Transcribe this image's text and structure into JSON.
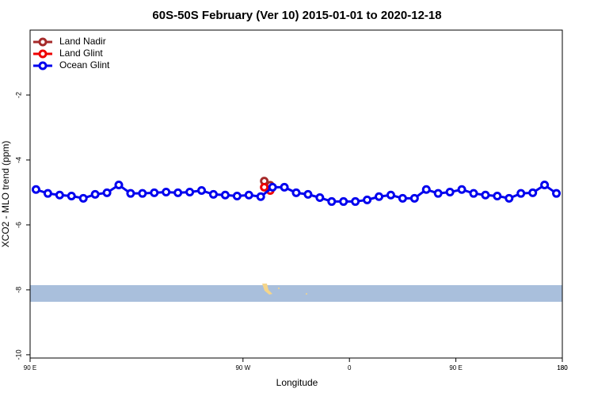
{
  "chart_data": {
    "type": "line",
    "title": "60S-50S February (Ver 10)   2015-01-01 to 2020-12-18",
    "xlabel": "Longitude",
    "ylabel": "XCO2 - MLO trend (ppm)",
    "xlim": [
      -270,
      180
    ],
    "ylim": [
      -10.1,
      0
    ],
    "xticks": [
      {
        "value": -270,
        "label": "90 E"
      },
      180,
      {
        "value": -90,
        "label": "90 W"
      },
      0,
      {
        "value": 90,
        "label": "90 E"
      },
      180
    ],
    "yticks": [
      -2,
      -4,
      -6,
      -8,
      -10
    ],
    "legend": "top-left",
    "series": [
      {
        "name": "Land Nadir",
        "color": "#a52a2a",
        "x": [
          -72,
          -67
        ],
        "values": [
          -4.65,
          -4.78
        ]
      },
      {
        "name": "Land Glint",
        "color": "#ee0000",
        "x": [
          -72,
          -67
        ],
        "values": [
          -4.84,
          -4.94
        ]
      },
      {
        "name": "Ocean Glint",
        "color": "#0000ee",
        "x": [
          -265,
          -255,
          -245,
          -235,
          -225,
          -215,
          -205,
          -195,
          -185,
          -175,
          -165,
          -155,
          -145,
          -135,
          -125,
          -115,
          -105,
          -95,
          -85,
          -75,
          -65,
          -55,
          -45,
          -35,
          -25,
          -15,
          -5,
          5,
          15,
          25,
          35,
          45,
          55,
          65,
          75,
          85,
          95,
          105,
          115,
          125,
          135,
          145,
          155,
          165,
          175
        ],
        "values": [
          -4.91,
          -5.03,
          -5.08,
          -5.11,
          -5.18,
          -5.06,
          -5.01,
          -4.77,
          -5.03,
          -5.03,
          -5.01,
          -4.99,
          -5.01,
          -4.99,
          -4.94,
          -5.06,
          -5.08,
          -5.11,
          -5.08,
          -5.13,
          -4.84,
          -4.84,
          -5.01,
          -5.06,
          -5.16,
          -5.28,
          -5.28,
          -5.28,
          -5.23,
          -5.13,
          -5.08,
          -5.18,
          -5.18,
          -4.91,
          -5.03,
          -4.99,
          -4.91,
          -5.03,
          -5.08,
          -5.11,
          -5.18,
          -5.03,
          -5.01,
          -4.77,
          -5.03
        ]
      }
    ]
  }
}
